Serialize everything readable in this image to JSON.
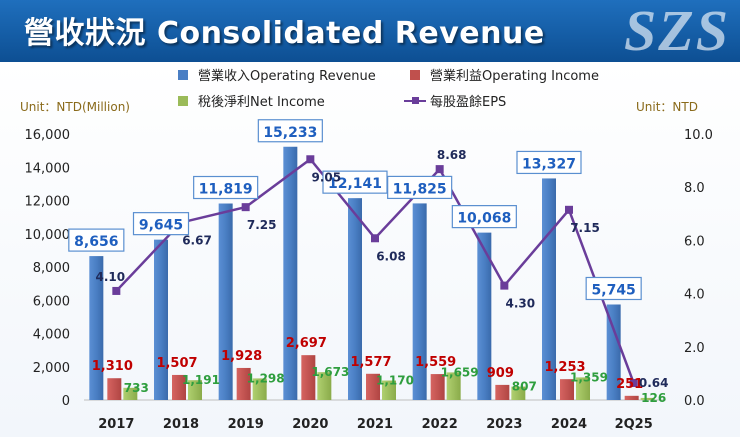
{
  "header": {
    "title": "營收狀況 Consolidated Revenue",
    "logo": "SZS"
  },
  "colors": {
    "revenue": "#4a7fc4",
    "operating_income": "#c0504d",
    "net_income": "#9bbb59",
    "eps": "#6a3d9a",
    "revenue_label": "#1f5fbf",
    "op_label": "#c00000",
    "net_label": "#2e9e3e",
    "eps_label": "#1f2a5a",
    "unit_label": "#8a6a1a"
  },
  "chart_data": {
    "type": "bar",
    "title": "營收狀況 Consolidated Revenue",
    "categories": [
      "2017",
      "2018",
      "2019",
      "2020",
      "2021",
      "2022",
      "2023",
      "2024",
      "2Q25"
    ],
    "series": [
      {
        "name": "營業收入Operating Revenue",
        "axis": "left",
        "values": [
          8656,
          9645,
          11819,
          15233,
          12141,
          11825,
          10068,
          13327,
          5745
        ],
        "labels": [
          "8,656",
          "9,645",
          "11,819",
          "15,233",
          "12,141",
          "11,825",
          "10,068",
          "13,327",
          "5,745"
        ]
      },
      {
        "name": "營業利益Operating Income",
        "axis": "left",
        "values": [
          1310,
          1507,
          1928,
          2697,
          1577,
          1559,
          909,
          1253,
          251
        ],
        "labels": [
          "1,310",
          "1,507",
          "1,928",
          "2,697",
          "1,577",
          "1,559",
          "909",
          "1,253",
          "251"
        ]
      },
      {
        "name": "稅後淨利Net Income",
        "axis": "left",
        "values": [
          733,
          1191,
          1298,
          1673,
          1170,
          1659,
          807,
          1359,
          126
        ],
        "labels": [
          "733",
          "1,191",
          "1,298",
          "1,673",
          "1,170",
          "1,659",
          "807",
          "1,359",
          "126"
        ]
      },
      {
        "name": "每股盈餘EPS",
        "type": "line",
        "axis": "right",
        "values": [
          4.1,
          6.67,
          7.25,
          9.05,
          6.08,
          8.68,
          4.3,
          7.15,
          0.64
        ],
        "labels": [
          "4.10",
          "6.67",
          "7.25",
          "9.05",
          "6.08",
          "8.68",
          "4.30",
          "7.15",
          "0.64"
        ]
      }
    ],
    "y_left": {
      "label": "Unit：NTD(Million)",
      "range": [
        0,
        16000
      ],
      "ticks": [
        0,
        2000,
        4000,
        6000,
        8000,
        10000,
        12000,
        14000,
        16000
      ],
      "tick_labels": [
        "0",
        "2,000",
        "4,000",
        "6,000",
        "8,000",
        "10,000",
        "12,000",
        "14,000",
        "16,000"
      ]
    },
    "y_right": {
      "label": "Unit：NTD",
      "range": [
        0,
        10
      ],
      "ticks": [
        0,
        2,
        4,
        6,
        8,
        10
      ],
      "tick_labels": [
        "0.0",
        "2.0",
        "4.0",
        "6.0",
        "8.0",
        "10.0"
      ]
    },
    "legend_position": "top-center"
  }
}
